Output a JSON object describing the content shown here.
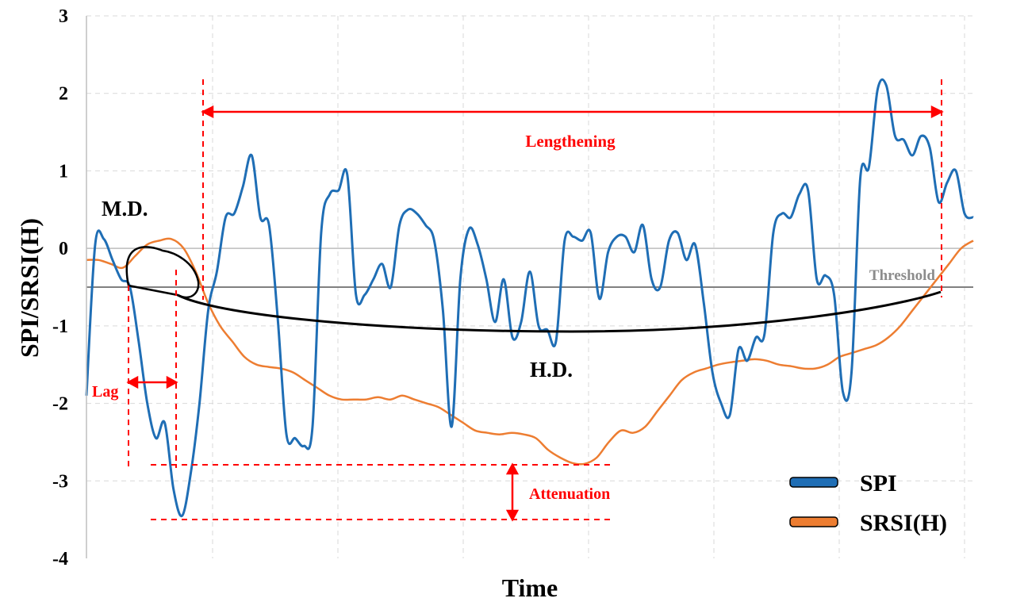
{
  "chart_data": {
    "type": "line",
    "xlabel": "Time",
    "ylabel": "SPI/SRSI(H)",
    "ylim": [
      -4,
      3
    ],
    "yticks": [
      3,
      2,
      1,
      0,
      -1,
      -2,
      -3,
      -4
    ],
    "grid": true,
    "legend_position": "bottom-right",
    "threshold": {
      "value": -0.5,
      "label": "Threshold",
      "color": "#808080"
    },
    "series": [
      {
        "name": "SPI",
        "color": "#1F6EB5",
        "values": [
          -1.9,
          0.05,
          0.12,
          -0.15,
          -0.4,
          -0.5,
          -1.2,
          -2.0,
          -2.45,
          -2.25,
          -3.1,
          -3.45,
          -2.9,
          -2.0,
          -0.8,
          -0.3,
          0.4,
          0.45,
          0.8,
          1.2,
          0.4,
          0.3,
          -0.9,
          -2.4,
          -2.45,
          -2.55,
          -2.3,
          0.2,
          0.7,
          0.75,
          0.95,
          -0.6,
          -0.6,
          -0.4,
          -0.2,
          -0.5,
          0.3,
          0.5,
          0.45,
          0.3,
          0.1,
          -0.8,
          -2.3,
          -0.4,
          0.25,
          0.05,
          -0.4,
          -0.95,
          -0.4,
          -1.15,
          -0.95,
          -0.3,
          -1.0,
          -1.05,
          -1.2,
          0.1,
          0.15,
          0.1,
          0.2,
          -0.65,
          -0.05,
          0.15,
          0.15,
          -0.05,
          0.3,
          -0.4,
          -0.5,
          0.1,
          0.2,
          -0.15,
          0.05,
          -0.7,
          -1.6,
          -2.0,
          -2.15,
          -1.3,
          -1.45,
          -1.15,
          -1.1,
          0.2,
          0.45,
          0.4,
          0.7,
          0.75,
          -0.4,
          -0.35,
          -0.6,
          -1.85,
          -1.6,
          0.9,
          1.05,
          2.05,
          2.1,
          1.45,
          1.4,
          1.2,
          1.45,
          1.3,
          0.6,
          0.85,
          1.0,
          0.45,
          0.4
        ]
      },
      {
        "name": "SRSI(H)",
        "color": "#ED7D31",
        "values": [
          -0.15,
          -0.15,
          -0.2,
          -0.25,
          -0.1,
          0.05,
          0.1,
          0.12,
          0.0,
          -0.3,
          -0.7,
          -1.0,
          -1.2,
          -1.4,
          -1.5,
          -1.53,
          -1.55,
          -1.6,
          -1.7,
          -1.8,
          -1.9,
          -1.95,
          -1.95,
          -1.95,
          -1.92,
          -1.95,
          -1.9,
          -1.95,
          -2.0,
          -2.05,
          -2.15,
          -2.25,
          -2.35,
          -2.38,
          -2.4,
          -2.38,
          -2.4,
          -2.45,
          -2.6,
          -2.7,
          -2.77,
          -2.78,
          -2.7,
          -2.5,
          -2.35,
          -2.38,
          -2.3,
          -2.1,
          -1.9,
          -1.7,
          -1.6,
          -1.55,
          -1.5,
          -1.47,
          -1.45,
          -1.43,
          -1.45,
          -1.5,
          -1.52,
          -1.55,
          -1.55,
          -1.5,
          -1.4,
          -1.35,
          -1.3,
          -1.25,
          -1.15,
          -1.0,
          -0.8,
          -0.6,
          -0.4,
          -0.2,
          0.0,
          0.1
        ]
      }
    ],
    "annotations": [
      {
        "id": "lengthening",
        "text": "Lengthening"
      },
      {
        "id": "md",
        "text": "M.D."
      },
      {
        "id": "hd",
        "text": "H.D."
      },
      {
        "id": "lag",
        "text": "Lag"
      },
      {
        "id": "attenuation",
        "text": "Attenuation"
      }
    ]
  }
}
